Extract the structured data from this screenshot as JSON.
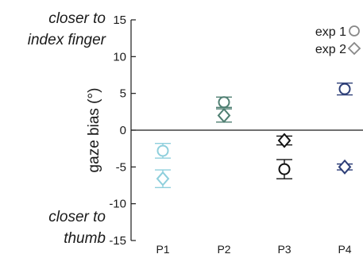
{
  "chart_data": {
    "type": "scatter",
    "ylabel": "gaze bias (°)",
    "ylim": [
      -15,
      15
    ],
    "yticks": [
      15,
      10,
      5,
      0,
      -5,
      -10,
      -15
    ],
    "zero_line": true,
    "categories": [
      "P1",
      "P2",
      "P3",
      "P4"
    ],
    "annotations": {
      "top": [
        "closer to",
        "index finger"
      ],
      "bottom": [
        "closer to",
        "thumb"
      ]
    },
    "legend": {
      "placement": "top-right",
      "entries": [
        {
          "label": "exp 1",
          "marker": "circle"
        },
        {
          "label": "exp 2",
          "marker": "diamond"
        }
      ]
    },
    "colors": {
      "P1": "#8ecfdc",
      "P2": "#4f7f72",
      "P3": "#111111",
      "P4": "#2e3f78",
      "legend": "#888888"
    },
    "series": [
      {
        "marker": "circle",
        "values": [
          -2.8,
          3.8,
          -5.3,
          5.6
        ],
        "errors": [
          1.0,
          0.7,
          1.3,
          0.8
        ]
      },
      {
        "marker": "diamond",
        "values": [
          -6.6,
          2.0,
          -1.4,
          -5.0
        ],
        "errors": [
          1.2,
          0.9,
          0.6,
          0.4
        ]
      }
    ]
  }
}
